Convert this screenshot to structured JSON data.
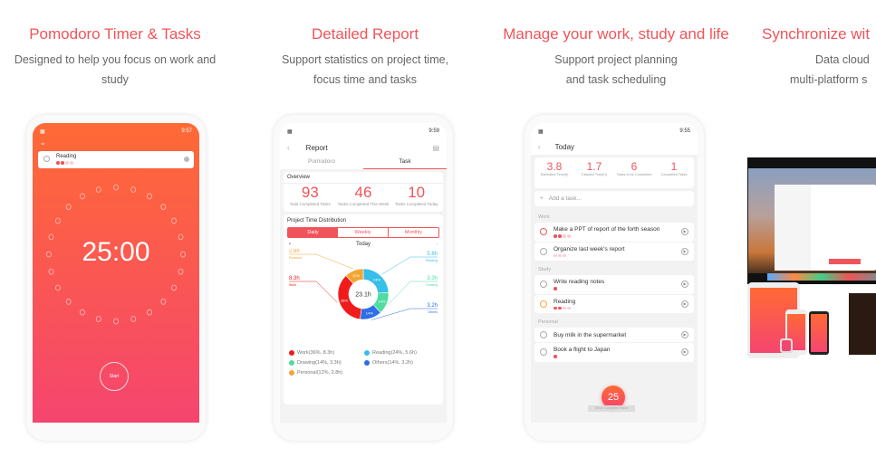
{
  "panels": [
    {
      "title": "Pomodoro Timer & Tasks",
      "subtitle_1": "Designed to help you focus on work and",
      "subtitle_2": "study"
    },
    {
      "title": "Detailed Report",
      "subtitle_1": "Support statistics on project time,",
      "subtitle_2": "focus time and tasks"
    },
    {
      "title": "Manage your work, study and life",
      "subtitle_1": "Support project planning",
      "subtitle_2": "and task scheduling"
    },
    {
      "title": "Synchronize wit",
      "subtitle_1": "Data cloud",
      "subtitle_2": "multi-platform s"
    }
  ],
  "timer": {
    "time_status": "9:57",
    "task": "Reading",
    "task_priority": 2,
    "countdown": "25:00",
    "start_label": "Start"
  },
  "report": {
    "time_status": "9:59",
    "title": "Report",
    "tabs": [
      "Pomodoro",
      "Task"
    ],
    "active_tab": "Task",
    "overview_label": "Overview",
    "stats": [
      {
        "value": "93",
        "label": "Total Completed Tasks"
      },
      {
        "value": "46",
        "label": "Tasks Completed This Week"
      },
      {
        "value": "10",
        "label": "Tasks Completed Today"
      }
    ],
    "distribution_label": "Project Time Distribution",
    "periods": [
      "Daily",
      "Weekly",
      "Monthly"
    ],
    "active_period": "Daily",
    "date_label": "Today",
    "total": "23.1h",
    "slices": [
      {
        "name": "Work",
        "pct": 36,
        "hours": "8.3h",
        "pct_label": "36%",
        "color": "#f01c1c",
        "legend": "Work(36%, 8.3h)"
      },
      {
        "name": "Reading",
        "pct": 24,
        "hours": "5.6h",
        "pct_label": "24%",
        "color": "#36bfe8",
        "legend": "Reading(24%, 5.6h)"
      },
      {
        "name": "Drawing",
        "pct": 14,
        "hours": "3.3h",
        "pct_label": "14%",
        "color": "#4fdca0",
        "legend": "Drawing(14%, 3.3h)"
      },
      {
        "name": "Others",
        "pct": 14,
        "hours": "3.2h",
        "pct_label": "14%",
        "color": "#2f6ee8",
        "legend": "Others(14%, 3.2h)"
      },
      {
        "name": "Personal",
        "pct": 12,
        "hours": "2.8h",
        "pct_label": "12%",
        "color": "#f5a534",
        "legend": "Personal(12%, 2.8h)"
      }
    ]
  },
  "today": {
    "time_status": "9:55",
    "title": "Today",
    "stats": [
      {
        "value": "3.8",
        "label": "Estimated Time(h)"
      },
      {
        "value": "1.7",
        "label": "Elapsed Time(h)"
      },
      {
        "value": "6",
        "label": "Tasks to be Completed"
      },
      {
        "value": "1",
        "label": "Completed Tasks"
      }
    ],
    "add_placeholder": "Add a task...",
    "groups": [
      {
        "name": "Work",
        "tasks": [
          {
            "title": "Make a PPT of report of the forth season",
            "priority": 2
          },
          {
            "title": "Organize last week's report",
            "priority": 0
          }
        ]
      },
      {
        "name": "Study",
        "tasks": [
          {
            "title": "Write reading notes",
            "priority": 1
          },
          {
            "title": "Reading",
            "priority": 2
          }
        ]
      },
      {
        "name": "Personal",
        "tasks": [
          {
            "title": "Buy milk in the supermarket"
          },
          {
            "title": "Book a flight to Japan",
            "priority": 1
          }
        ]
      }
    ],
    "fab": "25",
    "show_completed": "Show Completed Tasks"
  },
  "colors": {
    "accent": "#f0545a",
    "timer_top": "#ff6a35",
    "timer_bottom": "#f5456f"
  }
}
